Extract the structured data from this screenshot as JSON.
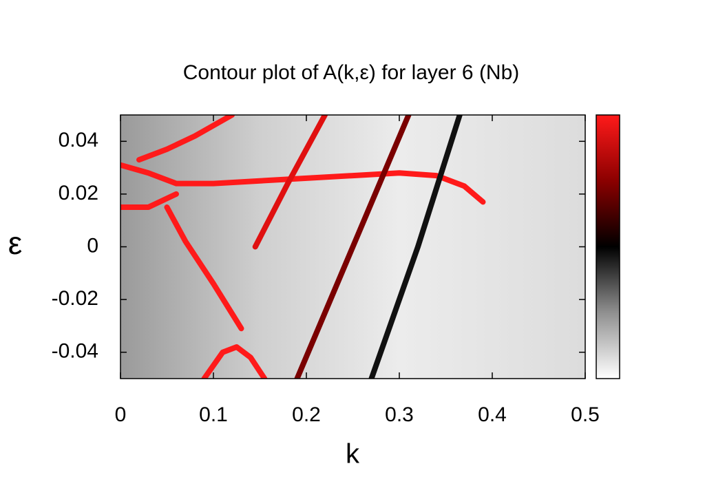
{
  "chart_data": {
    "type": "contour",
    "title": "Contour plot of A(k,ε)  for layer 6 (Nb)",
    "xlabel": "k",
    "ylabel": "ε",
    "xlim": [
      0,
      0.5
    ],
    "xticks": [
      0,
      0.1,
      0.2,
      0.3,
      0.4,
      0.5
    ],
    "ylim": [
      -0.05,
      0.05
    ],
    "yticks": [
      -0.04,
      -0.02,
      0,
      0.02,
      0.04
    ],
    "colormap": [
      "#ffffff",
      "#909090",
      "#000000",
      "#8b0000",
      "#ff1a1a"
    ],
    "series": [
      {
        "color": "#ff1a1a",
        "x": [
          0,
          0.03,
          0.06,
          0.1,
          0.15,
          0.2,
          0.25,
          0.3,
          0.34,
          0.37,
          0.39
        ],
        "values": [
          0.031,
          0.028,
          0.024,
          0.024,
          0.025,
          0.026,
          0.027,
          0.028,
          0.027,
          0.023,
          0.017
        ]
      },
      {
        "color": "#ff1a1a",
        "x": [
          0,
          0.03,
          0.06
        ],
        "values": [
          0.015,
          0.015,
          0.02
        ]
      },
      {
        "color": "#ff1a1a",
        "x": [
          0.05,
          0.07,
          0.1,
          0.13
        ],
        "values": [
          0.015,
          0.002,
          -0.014,
          -0.031
        ]
      },
      {
        "color": "#ff1a1a",
        "x": [
          0.02,
          0.05,
          0.08,
          0.12
        ],
        "values": [
          0.033,
          0.037,
          0.042,
          0.05
        ]
      },
      {
        "color": "#e01010",
        "x": [
          0.145,
          0.18,
          0.22
        ],
        "values": [
          0,
          0.024,
          0.05
        ]
      },
      {
        "color": "#7a0000",
        "x": [
          0.19,
          0.25,
          0.31
        ],
        "values": [
          -0.05,
          0,
          0.05
        ]
      },
      {
        "color": "#111111",
        "x": [
          0.27,
          0.32,
          0.365
        ],
        "values": [
          -0.05,
          0.0,
          0.05
        ]
      },
      {
        "color": "#ff1a1a",
        "x": [
          0.09,
          0.11,
          0.125,
          0.14,
          0.155
        ],
        "values": [
          -0.05,
          -0.04,
          -0.038,
          -0.042,
          -0.05
        ]
      }
    ]
  }
}
